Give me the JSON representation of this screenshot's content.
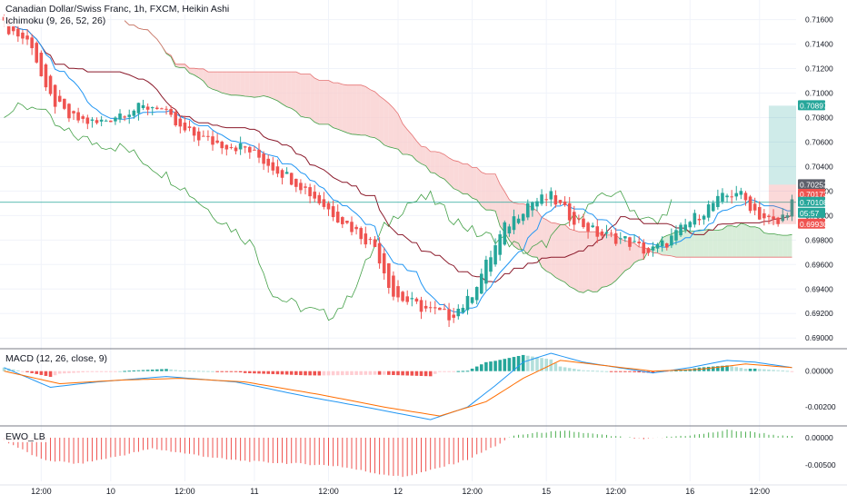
{
  "header": {
    "symbol_title": "Canadian Dollar/Swiss Franc, 1h, FXCM, Heikin Ashi",
    "ichimoku_label": "Ichimoku (9, 26, 52, 26)"
  },
  "macd_pane": {
    "title": "MACD (12, 26, close, 9)"
  },
  "ewo_pane": {
    "title": "EWO_LB"
  },
  "price_tags": [
    {
      "value": "0.70897",
      "color": "#26a69a"
    },
    {
      "value": "0.70252",
      "color": "#5d606b"
    },
    {
      "value": "0.70173",
      "color": "#ef5350"
    },
    {
      "value": "0.70108",
      "color": "#26a69a"
    },
    {
      "value": "05:57",
      "color": "#26a69a"
    },
    {
      "value": "0.69930",
      "color": "#ef5350"
    }
  ],
  "colors": {
    "up": "#26a69a",
    "down": "#ef5350",
    "kumo_green": "#c8e6c9",
    "kumo_red": "#f8c9c9",
    "tenkan": "#2196f3",
    "kijun": "#8b1a2b",
    "chikou": "#43a047",
    "macd_line": "#2196f3",
    "signal_line": "#ff6d00",
    "ewo_up": "#4caf50",
    "ewo_down": "#ef5350",
    "current_line": "#26a69a"
  },
  "chart_data": [
    {
      "type": "candlestick",
      "title": "Canadian Dollar/Swiss Franc, 1h, FXCM, Heikin Ashi",
      "x_ticks": [
        "12:00",
        "10",
        "12:00",
        "11",
        "12:00",
        "12",
        "12:00",
        "15",
        "12:00",
        "16",
        "12:00"
      ],
      "y_ticks": [
        "0.71600",
        "0.71400",
        "0.71200",
        "0.71000",
        "0.70800",
        "0.70600",
        "0.70400",
        "0.70200",
        "0.70000",
        "0.69800",
        "0.69600",
        "0.69400",
        "0.69200",
        "0.69000"
      ],
      "ylim": [
        0.6892,
        0.7176
      ],
      "anchors": [
        [
          0,
          0.7155
        ],
        [
          6,
          0.714
        ],
        [
          9,
          0.71
        ],
        [
          14,
          0.708
        ],
        [
          20,
          0.7075
        ],
        [
          26,
          0.7085
        ],
        [
          33,
          0.709
        ],
        [
          38,
          0.707
        ],
        [
          45,
          0.706
        ],
        [
          52,
          0.7055
        ],
        [
          58,
          0.704
        ],
        [
          64,
          0.7025
        ],
        [
          70,
          0.7005
        ],
        [
          75,
          0.699
        ],
        [
          80,
          0.6975
        ],
        [
          84,
          0.6935
        ],
        [
          90,
          0.6925
        ],
        [
          96,
          0.6918
        ],
        [
          100,
          0.693
        ],
        [
          104,
          0.696
        ],
        [
          108,
          0.699
        ],
        [
          113,
          0.701
        ],
        [
          118,
          0.7015
        ],
        [
          122,
          0.7
        ],
        [
          128,
          0.6985
        ],
        [
          134,
          0.698
        ],
        [
          139,
          0.697
        ],
        [
          143,
          0.6978
        ],
        [
          148,
          0.6995
        ],
        [
          153,
          0.701
        ],
        [
          158,
          0.702
        ],
        [
          163,
          0.7
        ],
        [
          167,
          0.6993
        ],
        [
          170,
          0.7011
        ]
      ],
      "indicator": "Ichimoku (9, 26, 52, 26)",
      "last_close": 0.70108
    },
    {
      "type": "line",
      "title": "MACD (12, 26, close, 9)",
      "y_ticks": [
        "0.00000",
        "-0.00200"
      ],
      "ylim": [
        -0.003,
        0.0012
      ],
      "series": [
        {
          "name": "MACD",
          "anchors": [
            [
              0,
              0.0002
            ],
            [
              10,
              -0.0009
            ],
            [
              20,
              -0.0006
            ],
            [
              35,
              -0.0003
            ],
            [
              50,
              -0.0006
            ],
            [
              65,
              -0.0014
            ],
            [
              80,
              -0.0021
            ],
            [
              92,
              -0.0027
            ],
            [
              100,
              -0.002
            ],
            [
              106,
              -0.0008
            ],
            [
              112,
              0.0005
            ],
            [
              118,
              0.001
            ],
            [
              125,
              0.0005
            ],
            [
              135,
              0.0001
            ],
            [
              140,
              -0.0001
            ],
            [
              148,
              0.0002
            ],
            [
              156,
              0.0006
            ],
            [
              162,
              0.0005
            ],
            [
              170,
              0.0002
            ]
          ]
        },
        {
          "name": "Signal",
          "anchors": [
            [
              0,
              0.0
            ],
            [
              12,
              -0.0007
            ],
            [
              25,
              -0.0005
            ],
            [
              38,
              -0.0004
            ],
            [
              52,
              -0.0006
            ],
            [
              68,
              -0.0013
            ],
            [
              82,
              -0.002
            ],
            [
              94,
              -0.0025
            ],
            [
              104,
              -0.0017
            ],
            [
              112,
              -0.0004
            ],
            [
              120,
              0.0006
            ],
            [
              130,
              0.0003
            ],
            [
              140,
              0.0
            ],
            [
              150,
              0.0001
            ],
            [
              160,
              0.0004
            ],
            [
              170,
              0.0002
            ]
          ]
        }
      ]
    },
    {
      "type": "bar",
      "title": "EWO_LB",
      "y_ticks": [
        "0.00000",
        "-0.00500"
      ],
      "ylim": [
        -0.008,
        0.002
      ],
      "anchors": [
        [
          0,
          -0.0005
        ],
        [
          8,
          -0.004
        ],
        [
          16,
          -0.0048
        ],
        [
          24,
          -0.0035
        ],
        [
          32,
          -0.002
        ],
        [
          40,
          -0.003
        ],
        [
          48,
          -0.004
        ],
        [
          56,
          -0.0045
        ],
        [
          64,
          -0.0048
        ],
        [
          72,
          -0.0052
        ],
        [
          80,
          -0.0065
        ],
        [
          86,
          -0.0072
        ],
        [
          92,
          -0.006
        ],
        [
          100,
          -0.004
        ],
        [
          106,
          -0.0015
        ],
        [
          110,
          0.0004
        ],
        [
          116,
          0.001
        ],
        [
          122,
          0.0012
        ],
        [
          130,
          0.0004
        ],
        [
          138,
          -0.0003
        ],
        [
          144,
          0.0002
        ],
        [
          150,
          0.0006
        ],
        [
          156,
          0.0014
        ],
        [
          162,
          0.001
        ],
        [
          168,
          0.0003
        ],
        [
          170,
          0.0002
        ]
      ]
    }
  ]
}
